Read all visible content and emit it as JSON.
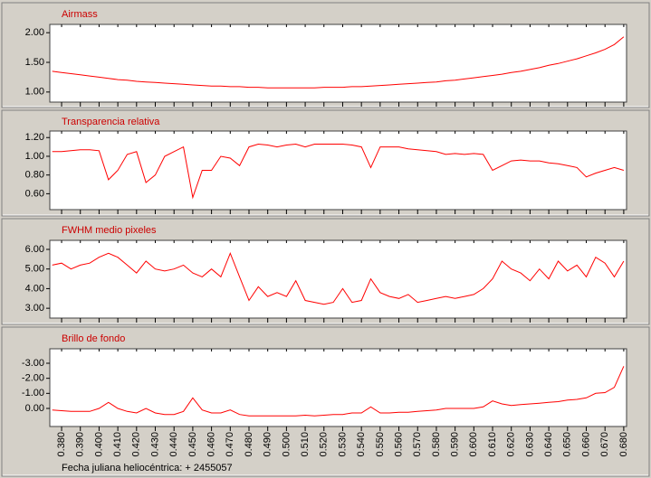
{
  "chart_data": [
    {
      "type": "line",
      "title": "Airmass",
      "color": "#ff0000",
      "x": [
        0.375,
        0.38,
        0.385,
        0.39,
        0.395,
        0.4,
        0.405,
        0.41,
        0.415,
        0.42,
        0.425,
        0.43,
        0.435,
        0.44,
        0.445,
        0.45,
        0.455,
        0.46,
        0.465,
        0.47,
        0.475,
        0.48,
        0.485,
        0.49,
        0.495,
        0.5,
        0.505,
        0.51,
        0.515,
        0.52,
        0.525,
        0.53,
        0.535,
        0.54,
        0.545,
        0.55,
        0.555,
        0.56,
        0.565,
        0.57,
        0.575,
        0.58,
        0.585,
        0.59,
        0.595,
        0.6,
        0.605,
        0.61,
        0.615,
        0.62,
        0.625,
        0.63,
        0.635,
        0.64,
        0.645,
        0.65,
        0.655,
        0.66,
        0.665,
        0.67,
        0.675,
        0.68
      ],
      "values": [
        1.35,
        1.33,
        1.31,
        1.29,
        1.27,
        1.25,
        1.23,
        1.21,
        1.2,
        1.18,
        1.17,
        1.16,
        1.15,
        1.14,
        1.13,
        1.12,
        1.11,
        1.1,
        1.1,
        1.09,
        1.09,
        1.08,
        1.08,
        1.07,
        1.07,
        1.07,
        1.07,
        1.07,
        1.07,
        1.08,
        1.08,
        1.08,
        1.09,
        1.09,
        1.1,
        1.11,
        1.12,
        1.13,
        1.14,
        1.15,
        1.16,
        1.17,
        1.19,
        1.2,
        1.22,
        1.24,
        1.26,
        1.28,
        1.3,
        1.33,
        1.35,
        1.38,
        1.41,
        1.45,
        1.48,
        1.52,
        1.56,
        1.61,
        1.66,
        1.72,
        1.8,
        1.93
      ],
      "xlim": [
        0.3737,
        0.6815
      ],
      "ylim": [
        0.83,
        2.14
      ],
      "yticks": [
        {
          "value": 1,
          "label": "1.00"
        },
        {
          "value": 1.5,
          "label": "1.50"
        },
        {
          "value": 2,
          "label": "2.00"
        }
      ]
    },
    {
      "type": "line",
      "title": "Transparencia relativa",
      "color": "#ff0000",
      "x": [
        0.375,
        0.38,
        0.385,
        0.39,
        0.395,
        0.4,
        0.405,
        0.41,
        0.415,
        0.42,
        0.425,
        0.43,
        0.435,
        0.44,
        0.445,
        0.45,
        0.455,
        0.46,
        0.465,
        0.47,
        0.475,
        0.48,
        0.485,
        0.49,
        0.495,
        0.5,
        0.505,
        0.51,
        0.515,
        0.52,
        0.525,
        0.53,
        0.535,
        0.54,
        0.545,
        0.55,
        0.555,
        0.56,
        0.565,
        0.57,
        0.575,
        0.58,
        0.585,
        0.59,
        0.595,
        0.6,
        0.605,
        0.61,
        0.615,
        0.62,
        0.625,
        0.63,
        0.635,
        0.64,
        0.645,
        0.65,
        0.655,
        0.66,
        0.665,
        0.67,
        0.675,
        0.68
      ],
      "values": [
        1.05,
        1.05,
        1.06,
        1.07,
        1.07,
        1.06,
        0.75,
        0.85,
        1.02,
        1.05,
        0.72,
        0.8,
        1.0,
        1.05,
        1.1,
        0.56,
        0.85,
        0.85,
        1.0,
        0.98,
        0.9,
        1.1,
        1.13,
        1.12,
        1.1,
        1.12,
        1.13,
        1.1,
        1.13,
        1.13,
        1.13,
        1.13,
        1.12,
        1.1,
        0.88,
        1.1,
        1.1,
        1.1,
        1.08,
        1.07,
        1.06,
        1.05,
        1.02,
        1.03,
        1.02,
        1.03,
        1.02,
        0.85,
        0.9,
        0.95,
        0.96,
        0.95,
        0.95,
        0.93,
        0.92,
        0.9,
        0.88,
        0.78,
        0.82,
        0.85,
        0.88,
        0.85
      ],
      "xlim": [
        0.3737,
        0.6815
      ],
      "ylim": [
        0.43,
        1.27
      ],
      "yticks": [
        {
          "value": 0.6,
          "label": "0.60"
        },
        {
          "value": 0.8,
          "label": "0.80"
        },
        {
          "value": 1,
          "label": "1.00"
        },
        {
          "value": 1.2,
          "label": "1.20"
        }
      ]
    },
    {
      "type": "line",
      "title": "FWHM medio pixeles",
      "color": "#ff0000",
      "x": [
        0.375,
        0.38,
        0.385,
        0.39,
        0.395,
        0.4,
        0.405,
        0.41,
        0.415,
        0.42,
        0.425,
        0.43,
        0.435,
        0.44,
        0.445,
        0.45,
        0.455,
        0.46,
        0.465,
        0.47,
        0.475,
        0.48,
        0.485,
        0.49,
        0.495,
        0.5,
        0.505,
        0.51,
        0.515,
        0.52,
        0.525,
        0.53,
        0.535,
        0.54,
        0.545,
        0.55,
        0.555,
        0.56,
        0.565,
        0.57,
        0.575,
        0.58,
        0.585,
        0.59,
        0.595,
        0.6,
        0.605,
        0.61,
        0.615,
        0.62,
        0.625,
        0.63,
        0.635,
        0.64,
        0.645,
        0.65,
        0.655,
        0.66,
        0.665,
        0.67,
        0.675,
        0.68
      ],
      "values": [
        5.2,
        5.3,
        5.0,
        5.2,
        5.3,
        5.6,
        5.8,
        5.6,
        5.2,
        4.8,
        5.4,
        5.0,
        4.9,
        5.0,
        5.2,
        4.8,
        4.6,
        5.0,
        4.6,
        5.8,
        4.6,
        3.4,
        4.1,
        3.6,
        3.8,
        3.6,
        4.4,
        3.4,
        3.3,
        3.2,
        3.3,
        4.0,
        3.3,
        3.4,
        4.5,
        3.8,
        3.6,
        3.5,
        3.7,
        3.3,
        3.4,
        3.5,
        3.6,
        3.5,
        3.6,
        3.7,
        4.0,
        4.5,
        5.4,
        5.0,
        4.8,
        4.4,
        5.0,
        4.5,
        5.4,
        4.9,
        5.2,
        4.6,
        5.6,
        5.3,
        4.6,
        5.4
      ],
      "xlim": [
        0.3737,
        0.6815
      ],
      "ylim": [
        2.5,
        6.46
      ],
      "yticks": [
        {
          "value": 3,
          "label": "3.00"
        },
        {
          "value": 4,
          "label": "4.00"
        },
        {
          "value": 5,
          "label": "5.00"
        },
        {
          "value": 6,
          "label": "6.00"
        }
      ]
    },
    {
      "type": "line",
      "title": "Brillo de fondo",
      "color": "#ff0000",
      "x": [
        0.375,
        0.38,
        0.385,
        0.39,
        0.395,
        0.4,
        0.405,
        0.41,
        0.415,
        0.42,
        0.425,
        0.43,
        0.435,
        0.44,
        0.445,
        0.45,
        0.455,
        0.46,
        0.465,
        0.47,
        0.475,
        0.48,
        0.485,
        0.49,
        0.495,
        0.5,
        0.505,
        0.51,
        0.515,
        0.52,
        0.525,
        0.53,
        0.535,
        0.54,
        0.545,
        0.55,
        0.555,
        0.56,
        0.565,
        0.57,
        0.575,
        0.58,
        0.585,
        0.59,
        0.595,
        0.6,
        0.605,
        0.61,
        0.615,
        0.62,
        0.625,
        0.63,
        0.635,
        0.64,
        0.645,
        0.65,
        0.655,
        0.66,
        0.665,
        0.67,
        0.675,
        0.68
      ],
      "values": [
        0.1,
        0.15,
        0.2,
        0.2,
        0.2,
        0.0,
        -0.4,
        0.0,
        0.2,
        0.3,
        0.0,
        0.3,
        0.4,
        0.4,
        0.2,
        -0.7,
        0.1,
        0.3,
        0.3,
        0.1,
        0.4,
        0.5,
        0.5,
        0.5,
        0.5,
        0.5,
        0.5,
        0.45,
        0.5,
        0.45,
        0.4,
        0.4,
        0.3,
        0.3,
        -0.1,
        0.3,
        0.3,
        0.25,
        0.25,
        0.2,
        0.15,
        0.1,
        0.0,
        0.0,
        0.0,
        0.0,
        -0.1,
        -0.5,
        -0.3,
        -0.2,
        -0.25,
        -0.3,
        -0.35,
        -0.4,
        -0.45,
        -0.55,
        -0.6,
        -0.7,
        -1.0,
        -1.05,
        -1.4,
        -2.8
      ],
      "xlim": [
        0.3737,
        0.6815
      ],
      "ylim": [
        1.2,
        -3.96
      ],
      "yticks": [
        {
          "value": 0,
          "label": "0.00"
        },
        {
          "value": -1,
          "label": "-1.00"
        },
        {
          "value": -2,
          "label": "-2.00"
        },
        {
          "value": -3,
          "label": "-3.00"
        }
      ],
      "xlabel": "Fecha juliana heliocéntrica: + 2455057",
      "xticks": [
        {
          "value": 0.38,
          "label": "0.380"
        },
        {
          "value": 0.39,
          "label": "0.390"
        },
        {
          "value": 0.4,
          "label": "0.400"
        },
        {
          "value": 0.41,
          "label": "0.410"
        },
        {
          "value": 0.42,
          "label": "0.420"
        },
        {
          "value": 0.43,
          "label": "0.430"
        },
        {
          "value": 0.44,
          "label": "0.440"
        },
        {
          "value": 0.45,
          "label": "0.450"
        },
        {
          "value": 0.46,
          "label": "0.460"
        },
        {
          "value": 0.47,
          "label": "0.470"
        },
        {
          "value": 0.48,
          "label": "0.480"
        },
        {
          "value": 0.49,
          "label": "0.490"
        },
        {
          "value": 0.5,
          "label": "0.500"
        },
        {
          "value": 0.51,
          "label": "0.510"
        },
        {
          "value": 0.52,
          "label": "0.520"
        },
        {
          "value": 0.53,
          "label": "0.530"
        },
        {
          "value": 0.54,
          "label": "0.540"
        },
        {
          "value": 0.55,
          "label": "0.550"
        },
        {
          "value": 0.56,
          "label": "0.560"
        },
        {
          "value": 0.57,
          "label": "0.570"
        },
        {
          "value": 0.58,
          "label": "0.580"
        },
        {
          "value": 0.59,
          "label": "0.590"
        },
        {
          "value": 0.6,
          "label": "0.600"
        },
        {
          "value": 0.61,
          "label": "0.610"
        },
        {
          "value": 0.62,
          "label": "0.620"
        },
        {
          "value": 0.63,
          "label": "0.630"
        },
        {
          "value": 0.64,
          "label": "0.640"
        },
        {
          "value": 0.65,
          "label": "0.650"
        },
        {
          "value": 0.66,
          "label": "0.660"
        },
        {
          "value": 0.67,
          "label": "0.670"
        },
        {
          "value": 0.68,
          "label": "0.680"
        }
      ]
    }
  ]
}
